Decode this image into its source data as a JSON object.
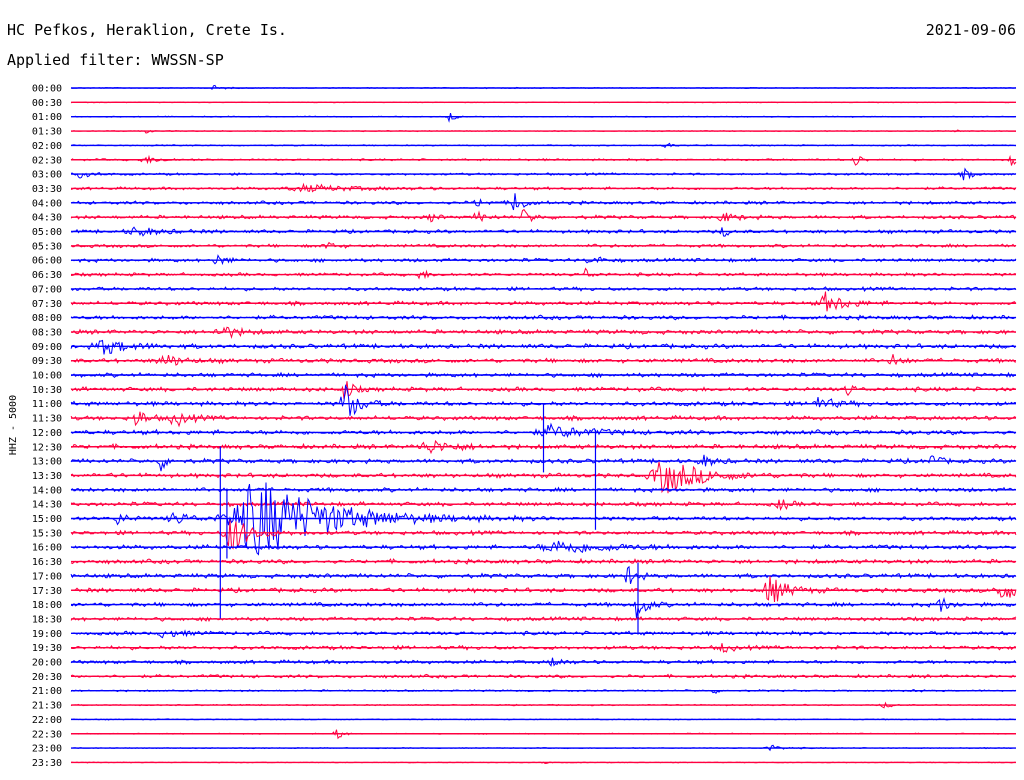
{
  "header": {
    "station": "HC Pefkos, Heraklion, Crete Is.",
    "date": "2021-09-06",
    "filter": "Applied filter: WWSSN-SP"
  },
  "chart_data": {
    "type": "line",
    "title": "HC Pefkos, Heraklion, Crete Is.",
    "subtitle": "Applied filter: WWSSN-SP",
    "ylabel": "HHZ - 5000",
    "rows": [
      "00:00",
      "00:30",
      "01:00",
      "01:30",
      "02:00",
      "02:30",
      "03:00",
      "03:30",
      "04:00",
      "04:30",
      "05:00",
      "05:30",
      "06:00",
      "06:30",
      "07:00",
      "07:30",
      "08:00",
      "08:30",
      "09:00",
      "09:30",
      "10:00",
      "10:30",
      "11:00",
      "11:30",
      "12:00",
      "12:30",
      "13:00",
      "13:30",
      "14:00",
      "14:30",
      "15:00",
      "15:30",
      "16:00",
      "16:30",
      "17:00",
      "17:30",
      "18:00",
      "18:30",
      "19:00",
      "19:30",
      "20:00",
      "20:30",
      "21:00",
      "21:30",
      "22:00",
      "22:30",
      "23:00",
      "23:30"
    ],
    "colors": [
      "#0000ff",
      "#ff0040"
    ],
    "noise": [
      0.4,
      0.3,
      0.4,
      0.4,
      0.5,
      0.8,
      0.9,
      1.1,
      1.3,
      1.4,
      1.4,
      1.3,
      1.4,
      1.3,
      1.4,
      1.5,
      1.6,
      1.7,
      1.8,
      1.7,
      1.6,
      1.7,
      1.7,
      1.7,
      1.8,
      1.8,
      1.7,
      1.7,
      1.6,
      1.6,
      1.6,
      1.6,
      1.7,
      1.7,
      1.7,
      1.7,
      1.6,
      1.5,
      1.5,
      1.5,
      1.4,
      1.3,
      0.7,
      0.5,
      0.4,
      0.4,
      0.4,
      0.3
    ],
    "events": [
      {
        "row": 0,
        "x": 0.15,
        "amp": 3,
        "width": 0.01
      },
      {
        "row": 2,
        "x": 0.4,
        "amp": 8,
        "width": 0.006
      },
      {
        "row": 3,
        "x": 0.08,
        "amp": 3,
        "width": 0.004
      },
      {
        "row": 3,
        "x": 0.935,
        "amp": 4,
        "width": 0.004
      },
      {
        "row": 4,
        "x": 0.63,
        "amp": 4,
        "width": 0.006
      },
      {
        "row": 5,
        "x": 0.08,
        "amp": 3,
        "width": 0.02
      },
      {
        "row": 5,
        "x": 0.83,
        "amp": 9,
        "width": 0.006
      },
      {
        "row": 5,
        "x": 0.995,
        "amp": 12,
        "width": 0.006
      },
      {
        "row": 6,
        "x": 0.01,
        "amp": 3,
        "width": 0.015
      },
      {
        "row": 6,
        "x": 0.945,
        "amp": 5,
        "width": 0.01
      },
      {
        "row": 7,
        "x": 0.25,
        "amp": 3,
        "width": 0.06
      },
      {
        "row": 8,
        "x": 0.47,
        "amp": 16,
        "width": 0.008
      },
      {
        "row": 8,
        "x": 0.43,
        "amp": 4,
        "width": 0.01
      },
      {
        "row": 9,
        "x": 0.38,
        "amp": 6,
        "width": 0.006
      },
      {
        "row": 9,
        "x": 0.43,
        "amp": 5,
        "width": 0.01
      },
      {
        "row": 9,
        "x": 0.48,
        "amp": 8,
        "width": 0.01
      },
      {
        "row": 9,
        "x": 0.69,
        "amp": 4,
        "width": 0.02
      },
      {
        "row": 10,
        "x": 0.07,
        "amp": 4,
        "width": 0.03
      },
      {
        "row": 10,
        "x": 0.69,
        "amp": 6,
        "width": 0.006
      },
      {
        "row": 11,
        "x": 0.27,
        "amp": 4,
        "width": 0.01
      },
      {
        "row": 12,
        "x": 0.155,
        "amp": 6,
        "width": 0.01
      },
      {
        "row": 12,
        "x": 0.55,
        "amp": 6,
        "width": 0.01
      },
      {
        "row": 13,
        "x": 0.37,
        "amp": 5,
        "width": 0.008
      },
      {
        "row": 13,
        "x": 0.545,
        "amp": 6,
        "width": 0.006
      },
      {
        "row": 15,
        "x": 0.8,
        "amp": 10,
        "width": 0.022
      },
      {
        "row": 17,
        "x": 0.16,
        "amp": 6,
        "width": 0.02
      },
      {
        "row": 18,
        "x": 0.035,
        "amp": 7,
        "width": 0.03
      },
      {
        "row": 19,
        "x": 0.1,
        "amp": 6,
        "width": 0.02
      },
      {
        "row": 19,
        "x": 0.87,
        "amp": 6,
        "width": 0.01
      },
      {
        "row": 21,
        "x": 0.29,
        "amp": 12,
        "width": 0.008
      },
      {
        "row": 21,
        "x": 0.82,
        "amp": 10,
        "width": 0.006
      },
      {
        "row": 22,
        "x": 0.29,
        "amp": 20,
        "width": 0.015
      },
      {
        "row": 22,
        "x": 0.79,
        "amp": 6,
        "width": 0.02
      },
      {
        "row": 23,
        "x": 0.07,
        "amp": 10,
        "width": 0.01
      },
      {
        "row": 23,
        "x": 0.11,
        "amp": 8,
        "width": 0.015
      },
      {
        "row": 24,
        "x": 0.51,
        "amp": 6,
        "width": 0.04
      },
      {
        "row": 25,
        "x": 0.38,
        "amp": 6,
        "width": 0.03
      },
      {
        "row": 26,
        "x": 0.095,
        "amp": 9,
        "width": 0.008
      },
      {
        "row": 26,
        "x": 0.67,
        "amp": 5,
        "width": 0.015
      },
      {
        "row": 26,
        "x": 0.91,
        "amp": 8,
        "width": 0.008
      },
      {
        "row": 27,
        "x": 0.63,
        "amp": 18,
        "width": 0.04
      },
      {
        "row": 29,
        "x": 0.75,
        "amp": 6,
        "width": 0.01
      },
      {
        "row": 30,
        "x": 0.05,
        "amp": 6,
        "width": 0.01
      },
      {
        "row": 30,
        "x": 0.11,
        "amp": 6,
        "width": 0.02
      },
      {
        "row": 30,
        "x": 0.2,
        "amp": 40,
        "width": 0.08
      },
      {
        "row": 31,
        "x": 0.17,
        "amp": 20,
        "width": 0.02
      },
      {
        "row": 32,
        "x": 0.52,
        "amp": 6,
        "width": 0.06
      },
      {
        "row": 34,
        "x": 0.59,
        "amp": 10,
        "width": 0.01
      },
      {
        "row": 35,
        "x": 0.74,
        "amp": 14,
        "width": 0.02
      },
      {
        "row": 35,
        "x": 0.985,
        "amp": 10,
        "width": 0.02
      },
      {
        "row": 36,
        "x": 0.6,
        "amp": 16,
        "width": 0.01
      },
      {
        "row": 36,
        "x": 0.92,
        "amp": 8,
        "width": 0.01
      },
      {
        "row": 38,
        "x": 0.1,
        "amp": 4,
        "width": 0.02
      },
      {
        "row": 39,
        "x": 0.69,
        "amp": 5,
        "width": 0.01
      },
      {
        "row": 40,
        "x": 0.51,
        "amp": 5,
        "width": 0.01
      },
      {
        "row": 42,
        "x": 0.68,
        "amp": 4,
        "width": 0.004
      },
      {
        "row": 42,
        "x": 0.89,
        "amp": 4,
        "width": 0.004
      },
      {
        "row": 43,
        "x": 0.86,
        "amp": 3,
        "width": 0.01
      },
      {
        "row": 45,
        "x": 0.28,
        "amp": 10,
        "width": 0.006
      },
      {
        "row": 46,
        "x": 0.74,
        "amp": 3,
        "width": 0.015
      },
      {
        "row": 47,
        "x": 0.5,
        "amp": 3,
        "width": 0.004
      }
    ],
    "spikes": [
      {
        "row": 30,
        "x": 0.158,
        "up": 72,
        "down": 100
      },
      {
        "row": 30,
        "x": 0.165,
        "up": 30,
        "down": 40
      },
      {
        "row": 28,
        "x": 0.555,
        "up": 60,
        "down": 40
      },
      {
        "row": 24,
        "x": 0.5,
        "up": 28,
        "down": 40
      },
      {
        "row": 36,
        "x": 0.6,
        "up": 42,
        "down": 30
      }
    ]
  }
}
